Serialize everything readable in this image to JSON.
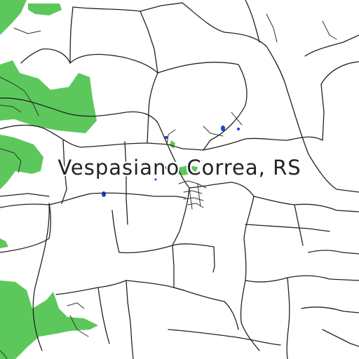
{
  "map": {
    "place_label": "Vespasiano Correa, RS",
    "colors": {
      "background": "#ffffff",
      "forest": "#5cc85c",
      "road": "#222222",
      "water": "#1a3fe0"
    }
  }
}
